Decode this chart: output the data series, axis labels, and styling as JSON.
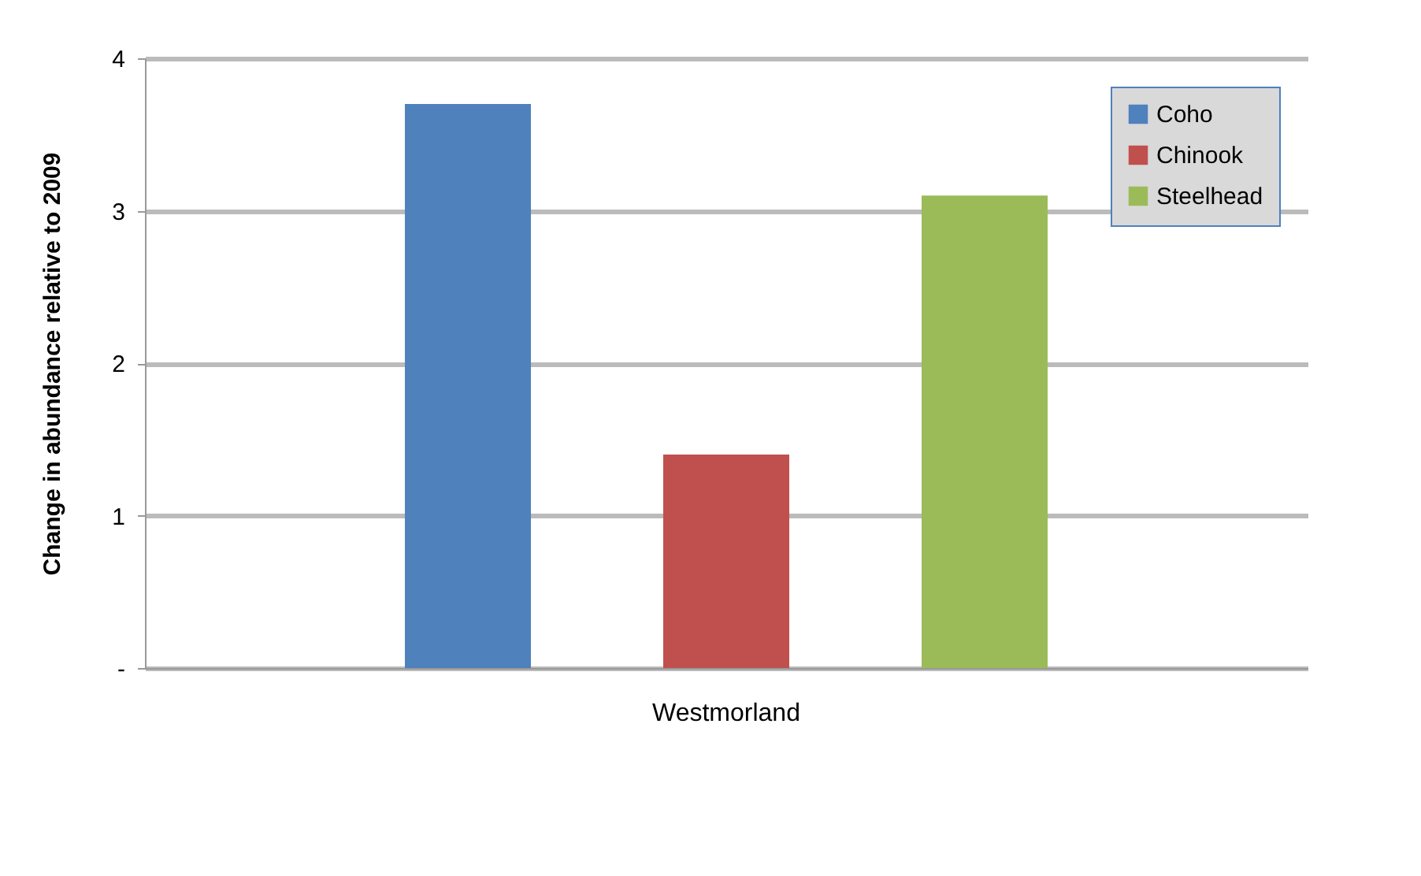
{
  "chart_data": {
    "type": "bar",
    "ylabel": "Change in abundance  relative to 2009",
    "categories": [
      "Westmorland"
    ],
    "series": [
      {
        "name": "Coho",
        "color": "#4f81bd",
        "values": [
          3.7
        ]
      },
      {
        "name": "Chinook",
        "color": "#c0504d",
        "values": [
          1.4
        ]
      },
      {
        "name": "Steelhead",
        "color": "#9bbb59",
        "values": [
          3.1
        ]
      }
    ],
    "ylim": [
      0,
      4
    ],
    "yticks": [
      {
        "value": 0,
        "label": "-"
      },
      1,
      2,
      3,
      4
    ],
    "grid": "y",
    "legend": "top right"
  }
}
